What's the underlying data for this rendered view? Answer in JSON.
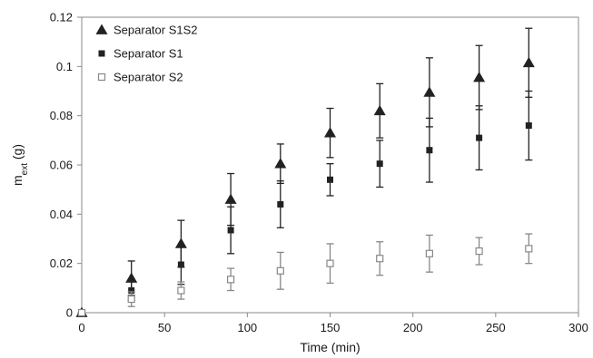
{
  "chart_data": {
    "type": "scatter",
    "xlabel": "Time (min)",
    "ylabel_main": "m",
    "ylabel_sub": "ext",
    "ylabel_unit": " (g)",
    "xlim": [
      0,
      300
    ],
    "ylim": [
      0,
      0.12
    ],
    "x_ticks": [
      0,
      50,
      100,
      150,
      200,
      250,
      300
    ],
    "x_tick_labels": [
      "0",
      "50",
      "100",
      "150",
      "200",
      "250",
      "300"
    ],
    "y_ticks": [
      0,
      0.02,
      0.04,
      0.06,
      0.08,
      0.1,
      0.12
    ],
    "y_tick_labels": [
      "0",
      "0.02",
      "0.04",
      "0.06",
      "0.08",
      "0.1",
      "0.12"
    ],
    "grid": false,
    "legend_position": "top-left",
    "series": [
      {
        "name": "Separator S1S2",
        "marker": "triangle",
        "color": "#222222",
        "x": [
          0,
          30,
          60,
          90,
          120,
          150,
          180,
          210,
          240,
          270
        ],
        "y": [
          0,
          0.014,
          0.028,
          0.046,
          0.0605,
          0.073,
          0.082,
          0.0895,
          0.0955,
          0.1015
        ],
        "err": [
          0,
          0.007,
          0.0095,
          0.0105,
          0.008,
          0.01,
          0.011,
          0.014,
          0.013,
          0.014
        ]
      },
      {
        "name": "Separator S1",
        "marker": "square-filled",
        "color": "#222222",
        "x": [
          0,
          30,
          60,
          90,
          120,
          150,
          180,
          210,
          240,
          270
        ],
        "y": [
          0,
          0.009,
          0.0195,
          0.0335,
          0.044,
          0.054,
          0.0605,
          0.066,
          0.071,
          0.076
        ],
        "err": [
          0,
          0.004,
          0.008,
          0.0095,
          0.0095,
          0.0065,
          0.0095,
          0.013,
          0.013,
          0.014
        ]
      },
      {
        "name": "Separator S2",
        "marker": "square-open",
        "color": "#888888",
        "x": [
          0,
          30,
          60,
          90,
          120,
          150,
          180,
          210,
          240,
          270
        ],
        "y": [
          0,
          0.0055,
          0.009,
          0.0135,
          0.017,
          0.02,
          0.022,
          0.024,
          0.025,
          0.026
        ],
        "err": [
          0,
          0.003,
          0.0035,
          0.0045,
          0.0075,
          0.008,
          0.0068,
          0.0075,
          0.0055,
          0.006
        ]
      }
    ]
  }
}
